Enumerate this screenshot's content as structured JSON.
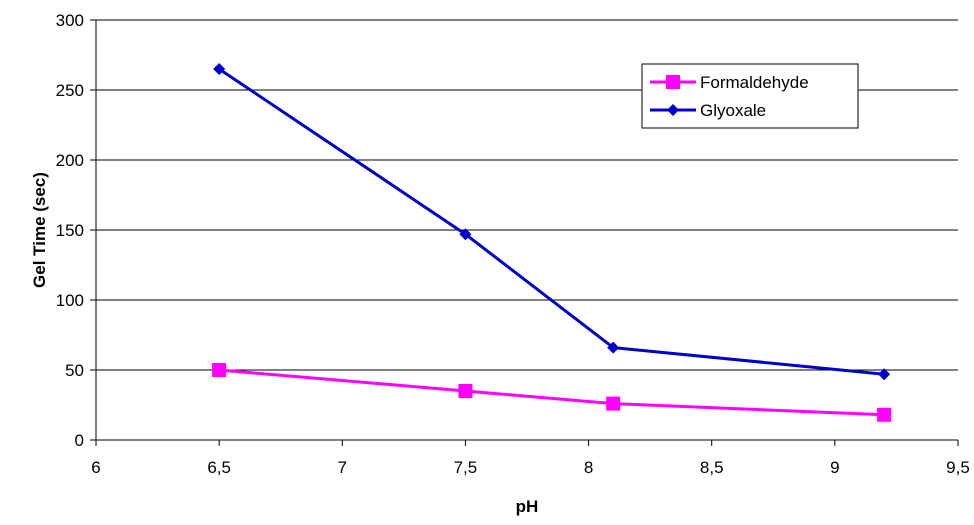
{
  "chart_data": {
    "type": "line",
    "title": "",
    "xlabel": "pH",
    "ylabel": "Gel Time (sec)",
    "xlim": [
      6,
      9.5
    ],
    "ylim": [
      0,
      300
    ],
    "x_ticks": [
      6,
      6.5,
      7,
      7.5,
      8,
      8.5,
      9,
      9.5
    ],
    "x_tick_labels": [
      "6",
      "6,5",
      "7",
      "7,5",
      "8",
      "8,5",
      "9",
      "9,5"
    ],
    "y_ticks": [
      0,
      50,
      100,
      150,
      200,
      250,
      300
    ],
    "y_tick_labels": [
      "0",
      "50",
      "100",
      "150",
      "200",
      "250",
      "300"
    ],
    "grid": "horizontal",
    "legend_position": "top-right",
    "series": [
      {
        "name": "Formaldehyde",
        "color": "#ff00ff",
        "marker": "square",
        "x": [
          6.5,
          7.5,
          8.1,
          9.2
        ],
        "y": [
          50,
          35,
          26,
          18
        ]
      },
      {
        "name": "Glyoxale",
        "color": "#0000cc",
        "marker": "diamond",
        "x": [
          6.5,
          7.5,
          8.1,
          9.2
        ],
        "y": [
          265,
          147,
          66,
          47
        ]
      }
    ]
  }
}
